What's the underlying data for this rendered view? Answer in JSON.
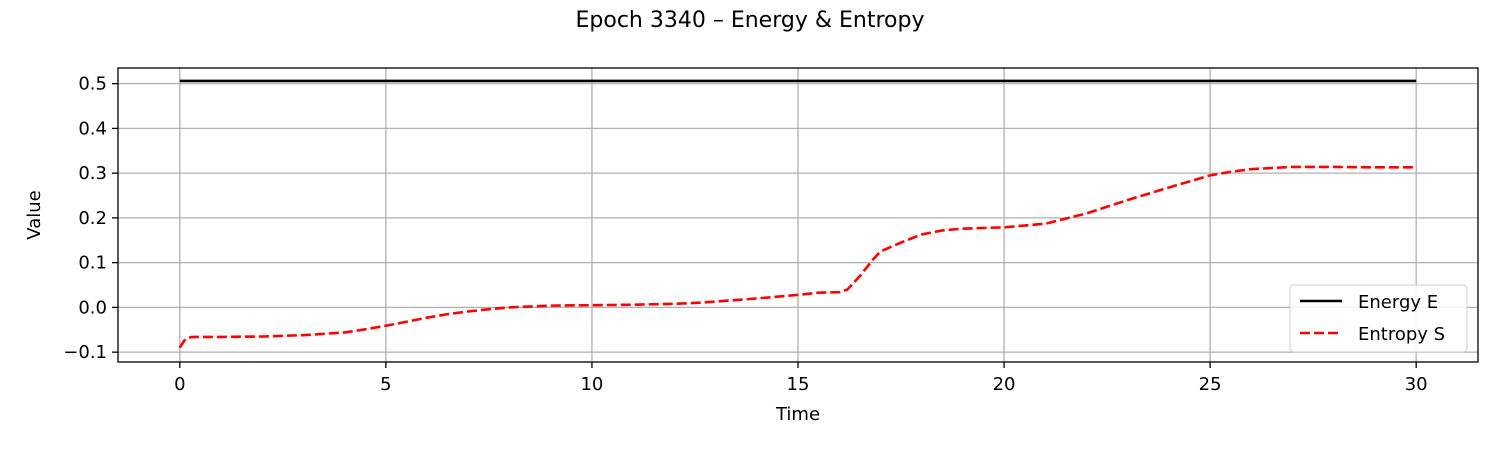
{
  "chart_data": {
    "type": "line",
    "title": "Epoch 3340 – Energy & Entropy",
    "xlabel": "Time",
    "ylabel": "Value",
    "xlim": [
      -1.5,
      31.5
    ],
    "ylim": [
      -0.122,
      0.535
    ],
    "xticks": [
      0,
      5,
      10,
      15,
      20,
      25,
      30
    ],
    "yticks": [
      -0.1,
      0.0,
      0.1,
      0.2,
      0.3,
      0.4,
      0.5
    ],
    "xtick_labels": [
      "0",
      "5",
      "10",
      "15",
      "20",
      "25",
      "30"
    ],
    "ytick_labels": [
      "−0.1",
      "0.0",
      "0.1",
      "0.2",
      "0.3",
      "0.4",
      "0.5"
    ],
    "grid": true,
    "legend_position": "lower right",
    "series": [
      {
        "name": "Energy E",
        "color": "#000000",
        "style": "solid",
        "x": [
          0,
          30
        ],
        "y": [
          0.506,
          0.506
        ]
      },
      {
        "name": "Entropy S",
        "color": "#ff0000",
        "style": "dashed",
        "x": [
          0,
          0.1,
          0.2,
          0.3,
          0.5,
          1,
          2,
          3,
          4,
          4.5,
          5,
          5.5,
          6,
          6.5,
          7,
          7.5,
          8,
          9,
          10,
          11,
          12,
          12.5,
          13,
          14,
          15,
          15.5,
          16,
          16.2,
          16.5,
          16.8,
          17,
          17.5,
          18,
          18.5,
          19,
          20,
          21,
          22,
          23,
          24,
          25,
          25.5,
          26,
          27,
          28,
          29,
          30
        ],
        "y": [
          -0.09,
          -0.075,
          -0.068,
          -0.066,
          -0.066,
          -0.066,
          -0.065,
          -0.062,
          -0.056,
          -0.049,
          -0.041,
          -0.032,
          -0.023,
          -0.015,
          -0.009,
          -0.004,
          0.0,
          0.004,
          0.005,
          0.006,
          0.008,
          0.01,
          0.013,
          0.02,
          0.028,
          0.033,
          0.034,
          0.04,
          0.07,
          0.105,
          0.125,
          0.145,
          0.163,
          0.172,
          0.176,
          0.179,
          0.187,
          0.21,
          0.24,
          0.268,
          0.295,
          0.303,
          0.309,
          0.314,
          0.314,
          0.313,
          0.313
        ]
      }
    ]
  }
}
